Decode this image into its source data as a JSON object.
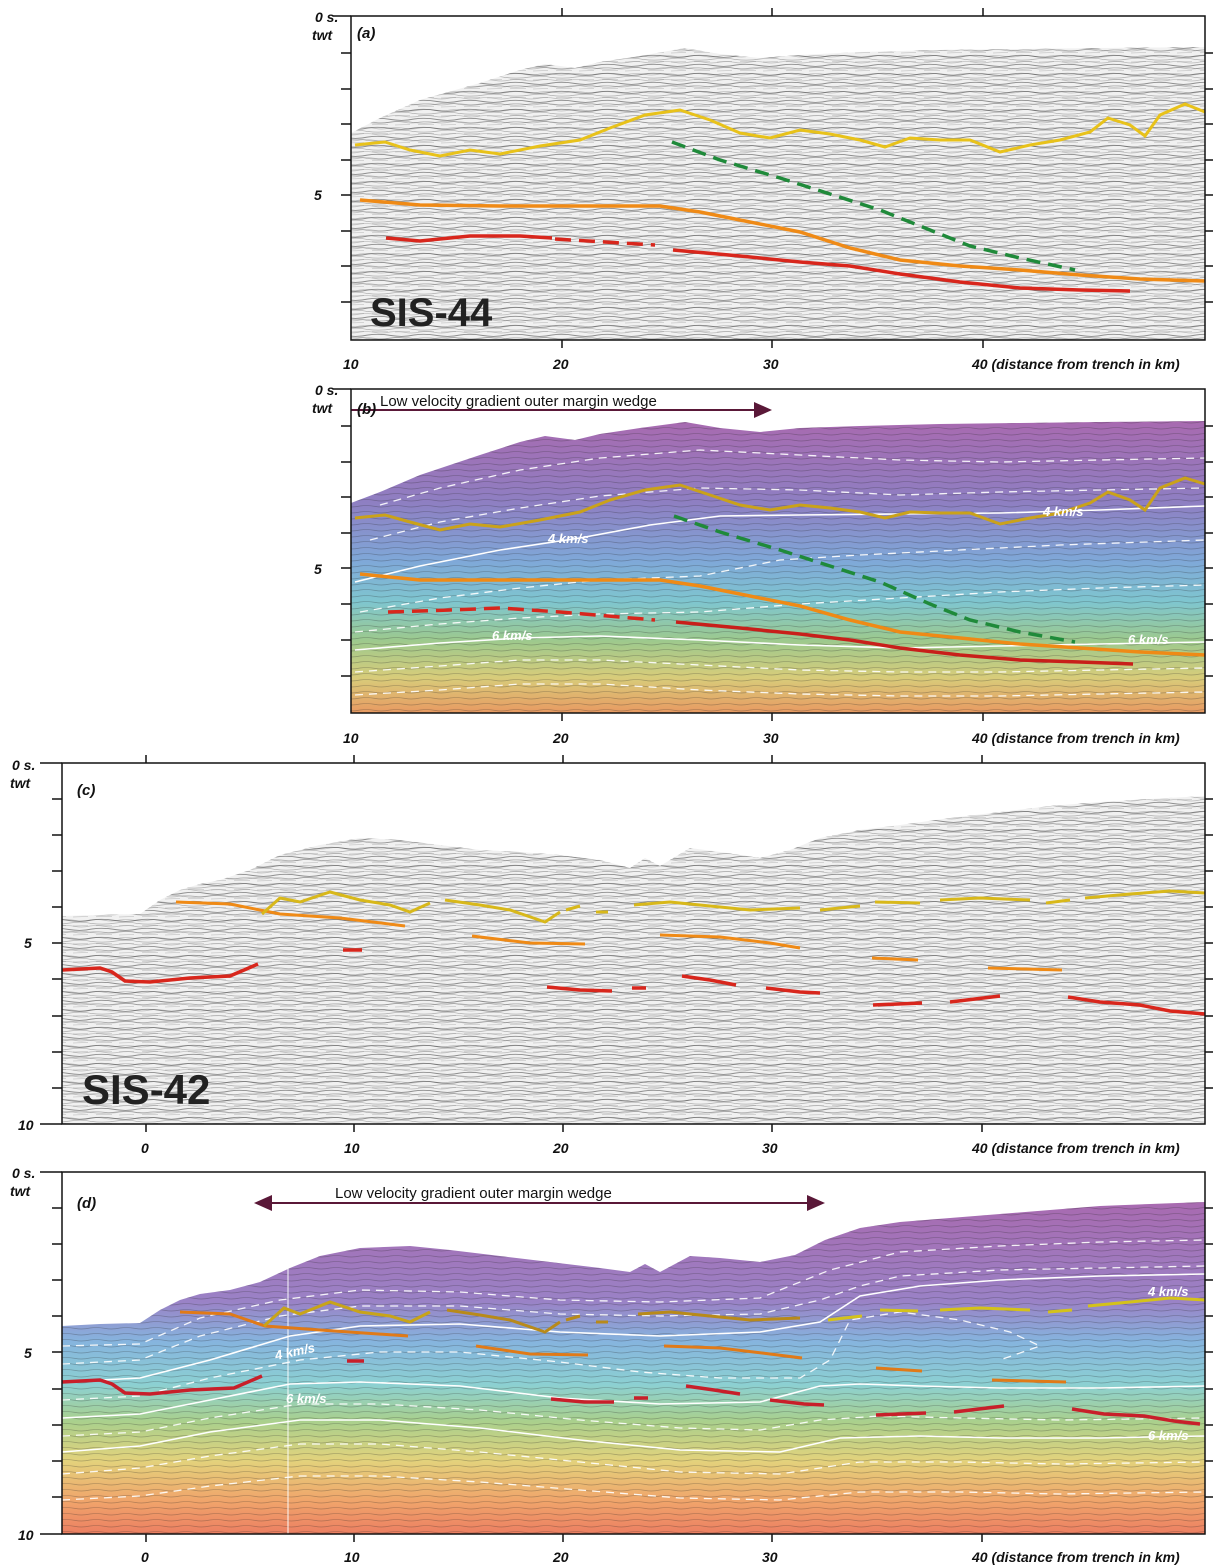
{
  "panels": [
    {
      "id": "a",
      "letter": "(a)",
      "line_name": "SIS-44",
      "y_top_label": "0 s.",
      "y_top_unit": "twt",
      "y_mid_label": "5",
      "x_ticks": [
        "10",
        "20",
        "30",
        "40 (distance from trench in km)"
      ],
      "colored": false
    },
    {
      "id": "b",
      "letter": "(b)",
      "wedge_label": "Low velocity gradient outer margin wedge",
      "y_top_label": "0 s.",
      "y_top_unit": "twt",
      "y_mid_label": "5",
      "x_ticks": [
        "10",
        "20",
        "30",
        "40 (distance from trench in km)"
      ],
      "velocity_labels": [
        "4 km/s",
        "4 km/s",
        "6 km/s",
        "6 km/s"
      ],
      "colored": true
    },
    {
      "id": "c",
      "letter": "(c)",
      "line_name": "SIS-42",
      "y_top_label": "0 s.",
      "y_top_unit": "twt",
      "y_mid_label": "5",
      "y_bottom_label": "10",
      "x_ticks": [
        "0",
        "10",
        "20",
        "30",
        "40 (distance from trench in km)"
      ],
      "colored": false
    },
    {
      "id": "d",
      "letter": "(d)",
      "wedge_label": "Low velocity gradient outer margin wedge",
      "y_top_label": "0 s.",
      "y_top_unit": "twt",
      "y_mid_label": "5",
      "y_bottom_label": "10",
      "x_ticks": [
        "0",
        "10",
        "20",
        "30",
        "40 (distance from trench in km)"
      ],
      "velocity_labels": [
        "4 km/s",
        "4 km/s",
        "6 km/s",
        "6 km/s"
      ],
      "colored": true
    }
  ],
  "colors": {
    "yellow_horizon": "#e8c21a",
    "orange_horizon": "#ef8a16",
    "red_horizon": "#d8261c",
    "green_horizon": "#1f8a3a",
    "wedge_arrow": "#5a1838"
  }
}
